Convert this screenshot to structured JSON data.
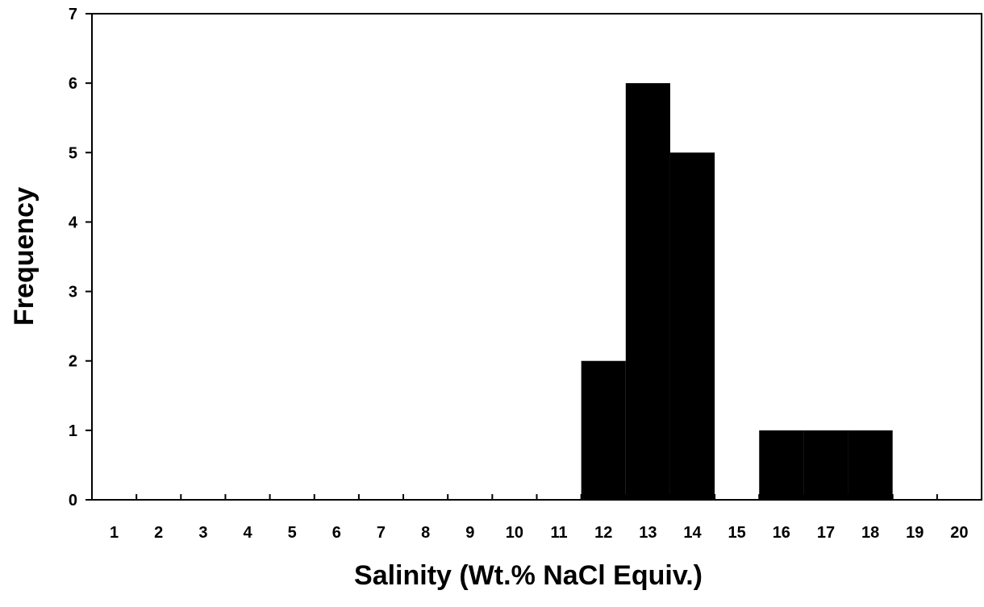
{
  "chart_data": {
    "type": "bar",
    "categories": [
      "1",
      "2",
      "3",
      "4",
      "5",
      "6",
      "7",
      "8",
      "9",
      "10",
      "11",
      "12",
      "13",
      "14",
      "15",
      "16",
      "17",
      "18",
      "19",
      "20"
    ],
    "values": [
      0,
      0,
      0,
      0,
      0,
      0,
      0,
      0,
      0,
      0,
      0,
      2,
      6,
      5,
      0,
      1,
      1,
      1,
      0,
      0
    ],
    "title": "",
    "xlabel": "Salinity (Wt.% NaCl Equiv.)",
    "ylabel": "Frequency",
    "ylim": [
      0,
      7
    ],
    "yticks": [
      0,
      1,
      2,
      3,
      4,
      5,
      6,
      7
    ],
    "grid": false,
    "bar_color": "#000000"
  }
}
